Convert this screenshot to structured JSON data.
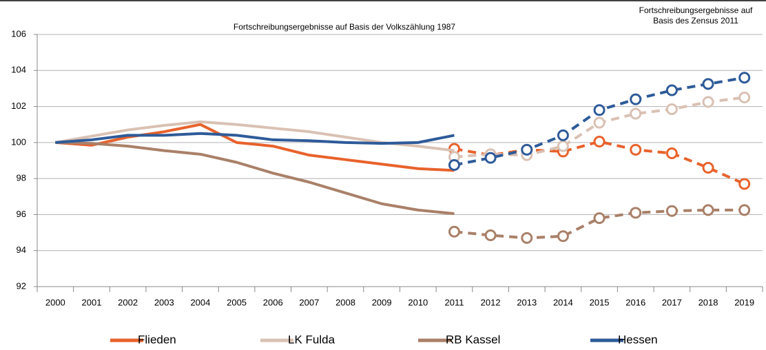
{
  "chart_data": {
    "type": "line",
    "annotations": [
      {
        "lines": [
          "Fortschreibungsergebnisse auf Basis der Volkszählung 1987"
        ]
      },
      {
        "lines": [
          "Fortschreibungsergebnisse auf",
          "Basis des Zensus 2011"
        ]
      }
    ],
    "categories": [
      "2000",
      "2001",
      "2002",
      "2003",
      "2004",
      "2005",
      "2006",
      "2007",
      "2008",
      "2009",
      "2010",
      "2011",
      "2012",
      "2013",
      "2014",
      "2015",
      "2016",
      "2017",
      "2018",
      "2019"
    ],
    "series": [
      {
        "name": "Flieden",
        "color": "#e8622c",
        "values": [
          100,
          99.85,
          100.3,
          100.6,
          101.0,
          100.0,
          99.8,
          99.3,
          99.05,
          98.8,
          98.55,
          98.45,
          null,
          null,
          null,
          null,
          null,
          null,
          null,
          null
        ],
        "census_values": [
          null,
          null,
          null,
          null,
          null,
          null,
          null,
          null,
          null,
          null,
          null,
          99.65,
          99.3,
          99.6,
          99.5,
          100.05,
          99.6,
          99.4,
          98.6,
          97.7
        ]
      },
      {
        "name": "LK Fulda",
        "color": "#d9c1b3",
        "values": [
          100,
          100.35,
          100.7,
          100.95,
          101.15,
          101.0,
          100.8,
          100.6,
          100.3,
          100.0,
          99.8,
          99.55,
          null,
          null,
          null,
          null,
          null,
          null,
          null,
          null
        ],
        "census_values": [
          null,
          null,
          null,
          null,
          null,
          null,
          null,
          null,
          null,
          null,
          null,
          99.2,
          99.35,
          99.3,
          99.8,
          101.1,
          101.6,
          101.85,
          102.25,
          102.5
        ]
      },
      {
        "name": "RB Kassel",
        "color": "#a98068",
        "values": [
          100,
          99.95,
          99.8,
          99.55,
          99.35,
          98.9,
          98.3,
          97.8,
          97.2,
          96.6,
          96.25,
          96.05,
          null,
          null,
          null,
          null,
          null,
          null,
          null,
          null
        ],
        "census_values": [
          null,
          null,
          null,
          null,
          null,
          null,
          null,
          null,
          null,
          null,
          null,
          95.05,
          94.85,
          94.7,
          94.8,
          95.8,
          96.1,
          96.2,
          96.25,
          96.25
        ]
      },
      {
        "name": "Hessen",
        "color": "#2e5b99",
        "values": [
          100,
          100.15,
          100.4,
          100.4,
          100.5,
          100.4,
          100.15,
          100.1,
          100.0,
          99.95,
          100.0,
          100.4,
          null,
          null,
          null,
          null,
          null,
          null,
          null,
          null
        ],
        "census_values": [
          null,
          null,
          null,
          null,
          null,
          null,
          null,
          null,
          null,
          null,
          null,
          98.75,
          99.15,
          99.6,
          100.4,
          101.8,
          102.4,
          102.9,
          103.25,
          103.6
        ]
      }
    ],
    "ylim": [
      92,
      106
    ],
    "yticks": [
      92,
      94,
      96,
      98,
      100,
      102,
      104,
      106
    ],
    "grid": true
  }
}
